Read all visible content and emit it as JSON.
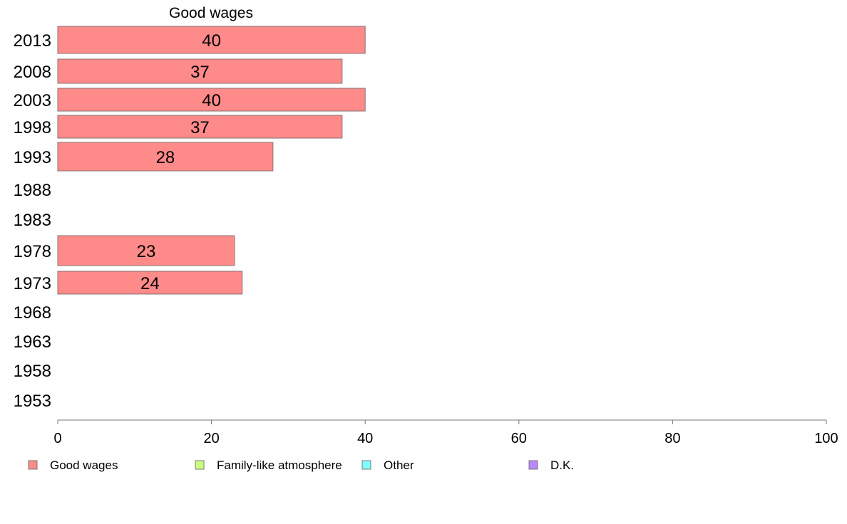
{
  "chart_data": {
    "type": "bar",
    "orientation": "horizontal",
    "title": "Good wages",
    "categories": [
      "2013",
      "2008",
      "2003",
      "1998",
      "1993",
      "1988",
      "1983",
      "1978",
      "1973",
      "1968",
      "1963",
      "1958",
      "1953"
    ],
    "series": [
      {
        "name": "Good wages",
        "values": [
          40,
          37,
          40,
          37,
          28,
          null,
          null,
          23,
          24,
          null,
          null,
          null,
          null
        ],
        "labels": [
          "40",
          "37",
          "40",
          "37",
          "28",
          "",
          "",
          "23",
          "24",
          "",
          "",
          "",
          ""
        ],
        "color": "#ff8a8a"
      }
    ],
    "xlim": [
      0,
      100
    ],
    "xticks": [
      "0",
      "20",
      "40",
      "60",
      "80",
      "100"
    ],
    "grid": false,
    "legend_position": "bottom",
    "legend": [
      {
        "label": "Good wages",
        "color": "#ff8a8a"
      },
      {
        "label": "Family-like atmosphere",
        "color": "#c8ff80"
      },
      {
        "label": "Other",
        "color": "#80ffff"
      },
      {
        "label": "D.K.",
        "color": "#b888ff"
      }
    ]
  }
}
